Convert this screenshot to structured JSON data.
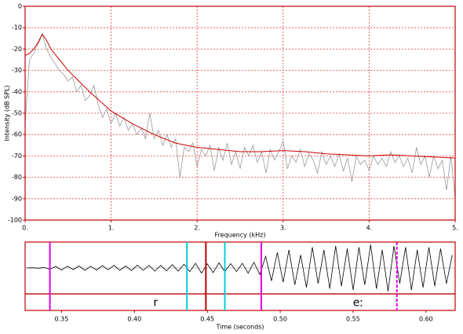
{
  "chart_data": [
    {
      "type": "line",
      "xlabel": "Frequency (kHz)",
      "ylabel": "Intensity (dB SPL)",
      "xlim": [
        0,
        5
      ],
      "ylim": [
        -100,
        0
      ],
      "xticks": [
        {
          "value": 0,
          "label": "0."
        },
        {
          "value": 1,
          "label": "1."
        },
        {
          "value": 2,
          "label": "2."
        },
        {
          "value": 3,
          "label": "3."
        },
        {
          "value": 4,
          "label": "4."
        },
        {
          "value": 5,
          "label": "5."
        }
      ],
      "yticks": [
        0,
        -10,
        -20,
        -30,
        -40,
        -50,
        -60,
        -70,
        -80,
        -90,
        -100
      ],
      "grid": true,
      "grid_color": "#e04040",
      "frame_color": "#c00000",
      "series": [
        {
          "color": "#999999",
          "x": [
            0,
            0.05,
            0.1,
            0.15,
            0.2,
            0.25,
            0.3,
            0.35,
            0.4,
            0.45,
            0.5,
            0.55,
            0.6,
            0.65,
            0.7,
            0.75,
            0.8,
            0.85,
            0.9,
            0.95,
            1.0,
            1.05,
            1.1,
            1.15,
            1.2,
            1.25,
            1.3,
            1.35,
            1.4,
            1.45,
            1.5,
            1.55,
            1.6,
            1.65,
            1.7,
            1.75,
            1.8,
            1.85,
            1.9,
            1.95,
            2.0,
            2.05,
            2.1,
            2.15,
            2.2,
            2.25,
            2.3,
            2.35,
            2.4,
            2.45,
            2.5,
            2.55,
            2.6,
            2.65,
            2.7,
            2.75,
            2.8,
            2.85,
            2.9,
            2.95,
            3.0,
            3.05,
            3.1,
            3.15,
            3.2,
            3.25,
            3.3,
            3.35,
            3.4,
            3.45,
            3.5,
            3.55,
            3.6,
            3.65,
            3.7,
            3.75,
            3.8,
            3.85,
            3.9,
            3.95,
            4.0,
            4.05,
            4.1,
            4.15,
            4.2,
            4.25,
            4.3,
            4.35,
            4.4,
            4.45,
            4.5,
            4.55,
            4.6,
            4.65,
            4.7,
            4.75,
            4.8,
            4.85,
            4.9,
            4.95,
            5.0
          ],
          "values": [
            -55,
            -25,
            -22,
            -18,
            -13,
            -20,
            -24,
            -27,
            -30,
            -32,
            -35,
            -33,
            -40,
            -37,
            -44,
            -42,
            -37,
            -46,
            -52,
            -48,
            -55,
            -50,
            -56,
            -52,
            -58,
            -55,
            -60,
            -57,
            -62,
            -50,
            -62,
            -58,
            -65,
            -60,
            -66,
            -62,
            -80,
            -66,
            -68,
            -64,
            -75,
            -67,
            -70,
            -65,
            -77,
            -66,
            -72,
            -64,
            -74,
            -68,
            -76,
            -66,
            -70,
            -65,
            -73,
            -68,
            -78,
            -67,
            -72,
            -68,
            -63,
            -76,
            -70,
            -73,
            -67,
            -75,
            -69,
            -72,
            -78,
            -68,
            -74,
            -70,
            -75,
            -69,
            -77,
            -71,
            -82,
            -70,
            -74,
            -72,
            -77,
            -70,
            -74,
            -71,
            -75,
            -68,
            -73,
            -70,
            -75,
            -71,
            -78,
            -66,
            -74,
            -70,
            -80,
            -70,
            -76,
            -72,
            -86,
            -70,
            -90
          ]
        },
        {
          "color": "#cc0000",
          "x": [
            0,
            0.05,
            0.1,
            0.15,
            0.2,
            0.25,
            0.3,
            0.4,
            0.5,
            0.6,
            0.75,
            1.0,
            1.25,
            1.5,
            1.75,
            2.0,
            2.25,
            2.5,
            2.75,
            3.0,
            3.25,
            3.5,
            3.75,
            4.0,
            4.25,
            4.5,
            4.75,
            5.0
          ],
          "values": [
            -23,
            -22,
            -20,
            -17,
            -13,
            -16,
            -20,
            -25,
            -30,
            -34,
            -40,
            -49,
            -55,
            -60,
            -64,
            -66,
            -67,
            -68,
            -68,
            -67.5,
            -68,
            -69,
            -69.5,
            -70,
            -69.5,
            -70,
            -70.5,
            -71
          ]
        }
      ]
    },
    {
      "type": "waveform",
      "xlabel": "Time (seconds)",
      "xlim": [
        0.325,
        0.62
      ],
      "ylim": [
        -1,
        1
      ],
      "xticks": [
        0.35,
        {
          "value": 0.4,
          "label": "0.40"
        },
        0.45,
        {
          "value": 0.5,
          "label": "0.50"
        },
        0.55,
        {
          "value": 0.6,
          "label": "0.60"
        }
      ],
      "frame_color": "#c00000",
      "color": "#000000",
      "x": [
        0.326,
        0.33,
        0.334,
        0.338,
        0.342,
        0.346,
        0.35,
        0.354,
        0.358,
        0.362,
        0.366,
        0.37,
        0.374,
        0.378,
        0.382,
        0.386,
        0.39,
        0.394,
        0.398,
        0.402,
        0.406,
        0.41,
        0.414,
        0.418,
        0.422,
        0.426,
        0.43,
        0.434,
        0.438,
        0.442,
        0.446,
        0.45,
        0.454,
        0.458,
        0.462,
        0.466,
        0.47,
        0.474,
        0.478,
        0.482,
        0.486,
        0.49,
        0.494,
        0.498,
        0.502,
        0.506,
        0.51,
        0.514,
        0.518,
        0.522,
        0.526,
        0.53,
        0.534,
        0.538,
        0.542,
        0.546,
        0.55,
        0.554,
        0.558,
        0.562,
        0.566,
        0.57,
        0.574,
        0.578,
        0.582,
        0.586,
        0.59,
        0.594,
        0.598,
        0.602,
        0.606,
        0.61,
        0.614,
        0.618
      ],
      "values": [
        0,
        0.01,
        -0.01,
        0.02,
        -0.05,
        0.06,
        -0.08,
        0.07,
        -0.06,
        0.08,
        -0.09,
        0.07,
        -0.08,
        0.09,
        -0.07,
        0.1,
        -0.09,
        0.08,
        -0.1,
        0.11,
        -0.09,
        0.1,
        -0.12,
        0.1,
        -0.11,
        0.13,
        -0.12,
        0.15,
        -0.14,
        0.18,
        -0.2,
        0.16,
        -0.18,
        0.2,
        -0.15,
        0.17,
        -0.14,
        0.18,
        -0.2,
        0.22,
        -0.25,
        0.45,
        -0.5,
        0.6,
        -0.55,
        0.7,
        -0.65,
        0.5,
        -0.75,
        0.8,
        -0.6,
        0.7,
        -0.8,
        0.85,
        -0.7,
        0.75,
        -0.85,
        0.8,
        -0.65,
        0.9,
        -0.8,
        0.7,
        -0.9,
        0.85,
        -0.6,
        0.8,
        -0.85,
        0.7,
        -0.75,
        0.8,
        -0.7,
        0.75,
        -0.6,
        0.5
      ],
      "markers": [
        {
          "time": 0.342,
          "color": "#e000e0",
          "dashed": false
        },
        {
          "time": 0.436,
          "color": "#00d0e0",
          "dashed": false
        },
        {
          "time": 0.449,
          "color": "#c00000",
          "dashed": false
        },
        {
          "time": 0.462,
          "color": "#00d0e0",
          "dashed": false
        },
        {
          "time": 0.487,
          "color": "#e000e0",
          "dashed": false
        },
        {
          "time": 0.58,
          "color": "#e000e0",
          "dashed": true
        }
      ],
      "tier": [
        {
          "label": "r",
          "start": 0.342,
          "end": 0.487
        },
        {
          "label": "eː",
          "start": 0.487,
          "end": 0.62
        }
      ]
    }
  ]
}
